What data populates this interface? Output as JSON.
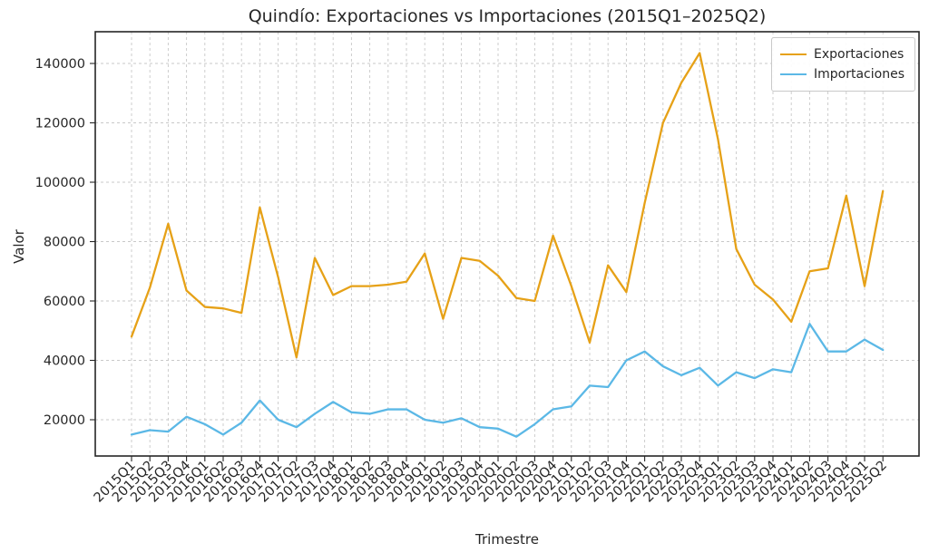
{
  "page": {
    "title": "Quindío: Exportaciones vs Importaciones (2015Q1–2025Q2)"
  },
  "axes": {
    "x_label": "Trimestre",
    "y_label": "Valor"
  },
  "legend": {
    "position": "top-right",
    "entries": [
      {
        "label": "Exportaciones",
        "color": "#E6A117"
      },
      {
        "label": "Importaciones",
        "color": "#5BB8E6"
      }
    ]
  },
  "chart_data": {
    "type": "line",
    "title": "Quindío: Exportaciones vs Importaciones (2015Q1–2025Q2)",
    "xlabel": "Trimestre",
    "ylabel": "Valor",
    "grid": true,
    "grid_style": "dashed",
    "legend_position": "upper right",
    "background": "#ffffff",
    "axis_color": "#262626",
    "grid_color": "#c8c8c8",
    "y_ticks": [
      20000,
      40000,
      60000,
      80000,
      100000,
      120000,
      140000
    ],
    "ylim": [
      7800,
      150700
    ],
    "categories": [
      "2015Q1",
      "2015Q2",
      "2015Q3",
      "2015Q4",
      "2016Q1",
      "2016Q2",
      "2016Q3",
      "2016Q4",
      "2017Q1",
      "2017Q2",
      "2017Q3",
      "2017Q4",
      "2018Q1",
      "2018Q2",
      "2018Q3",
      "2018Q4",
      "2019Q1",
      "2019Q2",
      "2019Q3",
      "2019Q4",
      "2020Q1",
      "2020Q2",
      "2020Q3",
      "2020Q4",
      "2021Q1",
      "2021Q2",
      "2021Q3",
      "2021Q4",
      "2022Q1",
      "2022Q2",
      "2022Q3",
      "2022Q4",
      "2023Q1",
      "2023Q2",
      "2023Q3",
      "2023Q4",
      "2024Q1",
      "2024Q2",
      "2024Q3",
      "2024Q4",
      "2025Q1",
      "2025Q2"
    ],
    "series": [
      {
        "name": "Exportaciones",
        "color": "#E6A117",
        "values": [
          48000,
          64500,
          86000,
          63500,
          58000,
          57500,
          56000,
          91500,
          68000,
          41000,
          74500,
          62000,
          65000,
          65000,
          65500,
          66500,
          76000,
          54000,
          74500,
          73500,
          68500,
          61000,
          60000,
          82000,
          65000,
          46000,
          72000,
          63000,
          93000,
          120000,
          133500,
          143500,
          114500,
          77500,
          65500,
          60500,
          53000,
          70000,
          71000,
          95500,
          65000,
          97000
        ]
      },
      {
        "name": "Importaciones",
        "color": "#5BB8E6",
        "values": [
          15000,
          16500,
          16000,
          21000,
          18500,
          15000,
          19000,
          26500,
          20000,
          17500,
          22000,
          26000,
          22500,
          22000,
          23500,
          23500,
          20000,
          19000,
          20500,
          17500,
          17000,
          14300,
          18500,
          23500,
          24500,
          31500,
          31000,
          40000,
          43000,
          38000,
          35000,
          37500,
          31500,
          36000,
          34000,
          37000,
          36000,
          52300,
          43000,
          43000,
          47000,
          43500
        ]
      }
    ]
  }
}
